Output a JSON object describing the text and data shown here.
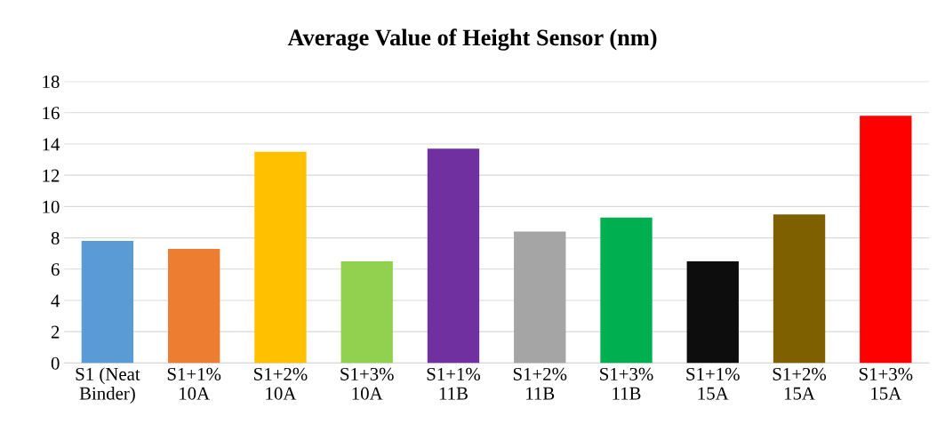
{
  "chart_data": {
    "type": "bar",
    "title": "Average Value of Height Sensor (nm)",
    "categories": [
      "S1 (Neat\nBinder)",
      "S1+1%\n10A",
      "S1+2%\n10A",
      "S1+3%\n10A",
      "S1+1%\n11B",
      "S1+2%\n11B",
      "S1+3%\n11B",
      "S1+1%\n15A",
      "S1+2%\n15A",
      "S1+3%\n15A"
    ],
    "values": [
      7.8,
      7.3,
      13.5,
      6.5,
      13.7,
      8.4,
      9.3,
      6.5,
      9.5,
      15.8
    ],
    "colors": [
      "#5b9bd5",
      "#ed7d31",
      "#ffc000",
      "#92d050",
      "#7030a0",
      "#a5a5a5",
      "#00b050",
      "#0d0d0d",
      "#7f6000",
      "#ff0000"
    ],
    "ylim": [
      0,
      18
    ],
    "yticks": [
      0,
      2,
      4,
      6,
      8,
      10,
      12,
      14,
      16,
      18
    ],
    "grid": "y"
  }
}
